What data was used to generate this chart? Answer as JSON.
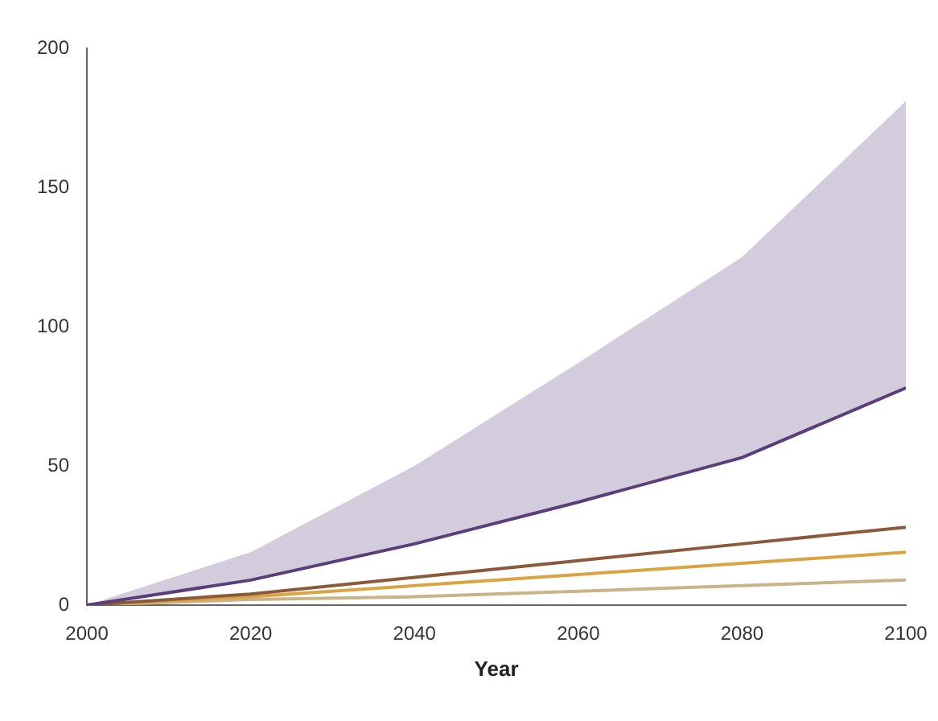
{
  "chart_data": {
    "type": "line",
    "xlabel": "Year",
    "x": [
      2000,
      2020,
      2040,
      2060,
      2080,
      2100
    ],
    "xlim": [
      2000,
      2100
    ],
    "xticks": [
      2000,
      2020,
      2040,
      2060,
      2080,
      2100
    ],
    "ylim": [
      0,
      200
    ],
    "yticks": [
      0,
      50,
      100,
      150,
      200
    ],
    "grid": false,
    "legend": false,
    "marker": "none",
    "series": [
      {
        "color": "#5a3f7a",
        "values": [
          0,
          9,
          22,
          37,
          53,
          78
        ],
        "lower": [
          0,
          9,
          22,
          37,
          53,
          78
        ],
        "upper": [
          0,
          19,
          50,
          87,
          125,
          181
        ]
      },
      {
        "color": "#8b5a3c",
        "values": [
          0,
          4,
          10,
          16,
          22,
          28
        ]
      },
      {
        "color": "#d9a441",
        "values": [
          0,
          3,
          7,
          11,
          15,
          19
        ]
      },
      {
        "color": "#c9b48a",
        "values": [
          0,
          2,
          3,
          5,
          7,
          9
        ]
      }
    ]
  }
}
